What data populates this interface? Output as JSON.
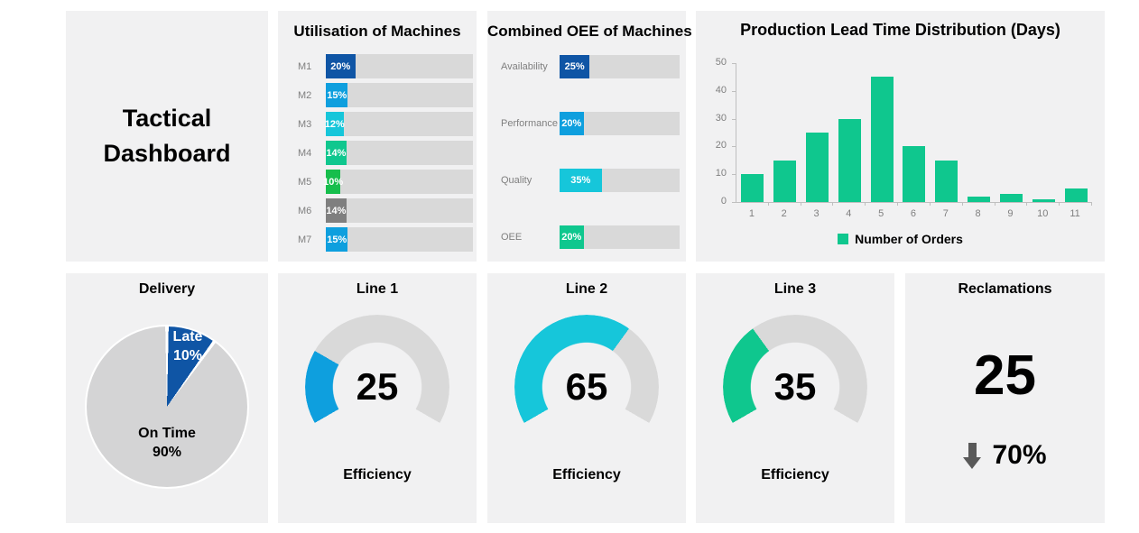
{
  "title_card": {
    "line1": "Tactical",
    "line2": "Dashboard"
  },
  "colors": {
    "panel_bg": "#f1f1f2",
    "track_gray": "#d9d9d9",
    "axis_gray": "#bfbfbf",
    "label_gray": "#7f7f7f",
    "dark_blue": "#0f55a5",
    "light_blue": "#0e9fde",
    "cyan": "#16c6da",
    "teal_green": "#0fc78e",
    "green": "#16be4c",
    "neutral_bar_gray": "#7f7f7f",
    "arrow_gray": "#595959"
  },
  "chart_data": [
    {
      "id": "utilisation",
      "type": "bar",
      "orientation": "horizontal",
      "title": "Utilisation of Machines",
      "categories": [
        "M1",
        "M2",
        "M3",
        "M4",
        "M5",
        "M6",
        "M7"
      ],
      "values": [
        20,
        15,
        12,
        14,
        10,
        14,
        15
      ],
      "value_labels": [
        "20%",
        "15%",
        "12%",
        "14%",
        "10%",
        "14%",
        "15%"
      ],
      "bar_colors": [
        "#0f55a5",
        "#0e9fde",
        "#16c6da",
        "#0fc78e",
        "#16be4c",
        "#7f7f7f",
        "#0e9fde"
      ],
      "track_color": "#d9d9d9",
      "xlim": [
        0,
        100
      ],
      "grid": false
    },
    {
      "id": "oee",
      "type": "bar",
      "orientation": "horizontal",
      "title": "Combined OEE of Machines",
      "categories": [
        "Availability",
        "Performance",
        "Quality",
        "OEE"
      ],
      "values": [
        25,
        20,
        35,
        20
      ],
      "value_labels": [
        "25%",
        "20%",
        "35%",
        "20%"
      ],
      "bar_colors": [
        "#0f55a5",
        "#0e9fde",
        "#16c6da",
        "#0fc78e"
      ],
      "track_color": "#d9d9d9",
      "xlim": [
        0,
        100
      ],
      "grid": false
    },
    {
      "id": "lead_time",
      "type": "bar",
      "orientation": "vertical",
      "title": "Production Lead Time Distribution (Days)",
      "categories": [
        "1",
        "2",
        "3",
        "4",
        "5",
        "6",
        "7",
        "8",
        "9",
        "10",
        "11"
      ],
      "values": [
        10,
        15,
        25,
        30,
        45,
        20,
        15,
        2,
        3,
        1,
        5
      ],
      "ylim": [
        0,
        50
      ],
      "yticks": [
        0,
        10,
        20,
        30,
        40,
        50
      ],
      "grid": false,
      "legend": [
        "Number of Orders"
      ],
      "legend_position": "bottom",
      "bar_color": "#0fc78e"
    },
    {
      "id": "delivery",
      "type": "pie",
      "title": "Delivery",
      "start_angle_deg": 0,
      "slices": [
        {
          "label": "Late",
          "value": 10,
          "pct_text": "10%",
          "color": "#0f55a5"
        },
        {
          "label": "On Time",
          "value": 90,
          "pct_text": "90%",
          "color": "#d4d4d5"
        }
      ]
    },
    {
      "id": "line1",
      "type": "gauge",
      "title": "Line 1",
      "value": 25,
      "max": 100,
      "caption": "Efficiency",
      "color": "#0e9fde",
      "track_color": "#d9d9d9",
      "arc_degrees": 240
    },
    {
      "id": "line2",
      "type": "gauge",
      "title": "Line 2",
      "value": 65,
      "max": 100,
      "caption": "Efficiency",
      "color": "#16c6da",
      "track_color": "#d9d9d9",
      "arc_degrees": 240
    },
    {
      "id": "line3",
      "type": "gauge",
      "title": "Line 3",
      "value": 35,
      "max": 100,
      "caption": "Efficiency",
      "color": "#0fc78e",
      "track_color": "#d9d9d9",
      "arc_degrees": 240
    },
    {
      "id": "reclamations",
      "type": "kpi",
      "title": "Reclamations",
      "value": "25",
      "trend": "70%",
      "trend_direction": "down",
      "trend_arrow_color": "#595959"
    }
  ]
}
